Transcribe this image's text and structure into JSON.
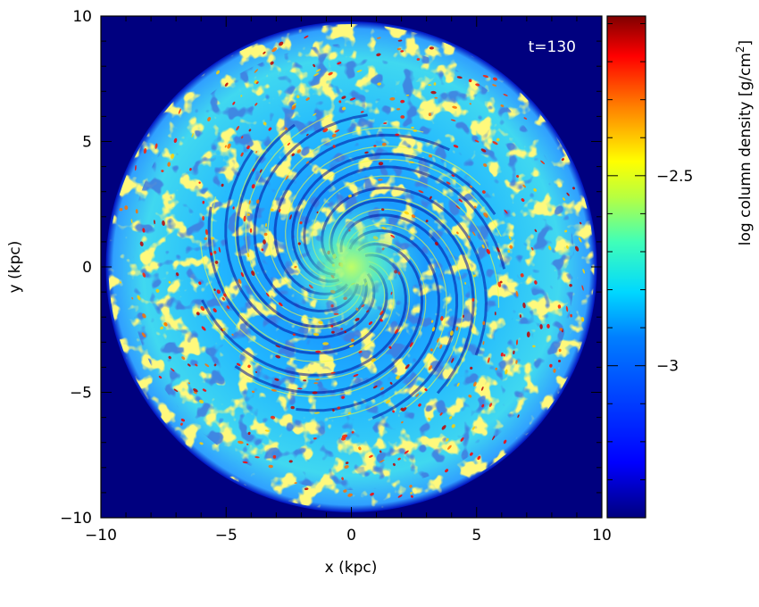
{
  "chart_data": {
    "type": "heatmap",
    "title": "",
    "annotation": "t=130",
    "xlabel": "x (kpc)",
    "ylabel": "y (kpc)",
    "xlim": [
      -10,
      10
    ],
    "ylim": [
      -10,
      10
    ],
    "xticks": [
      -10,
      -5,
      0,
      5,
      10
    ],
    "yticks": [
      -10,
      -5,
      0,
      5,
      10
    ],
    "xtick_labels": [
      "−10",
      "−5",
      "0",
      "5",
      "10"
    ],
    "ytick_labels": [
      "−10",
      "−5",
      "0",
      "5",
      "10"
    ],
    "disk_radius_kpc": 9.8,
    "colorbar": {
      "label_main": "log column density [g/cm",
      "label_sup": "2",
      "label_end": "]",
      "range": [
        -3.4,
        -2.08
      ],
      "ticks": [
        -2.5,
        -3
      ],
      "tick_labels": [
        "−2.5",
        "−3"
      ],
      "colormap": "jet",
      "colormap_stops": [
        "#00007f",
        "#0000ff",
        "#007fff",
        "#00ffff",
        "#7fff7f",
        "#ffff00",
        "#ff7f00",
        "#ff0000",
        "#7f0000"
      ]
    },
    "grid": false,
    "background_color": "#00007f"
  }
}
